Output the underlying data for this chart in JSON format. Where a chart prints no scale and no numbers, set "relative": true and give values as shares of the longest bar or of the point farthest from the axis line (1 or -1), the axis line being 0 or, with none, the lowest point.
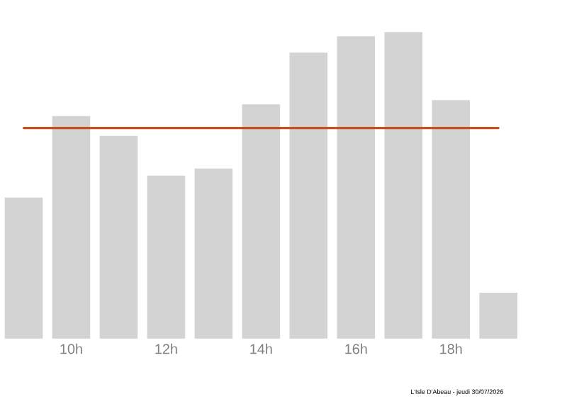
{
  "chart_data": {
    "type": "bar",
    "relative": true,
    "categories": [
      null,
      "10h",
      null,
      "12h",
      null,
      "14h",
      null,
      "16h",
      null,
      "18h",
      null
    ],
    "values": [
      0.46,
      0.726,
      0.661,
      0.532,
      0.555,
      0.764,
      0.933,
      0.986,
      1,
      0.778,
      0.15
    ],
    "color": "#d3d3d3",
    "ref_lines": [
      {
        "axis": "y",
        "value": 0.687,
        "color": "#c8501e"
      }
    ],
    "annotations": [
      "L'Isle D'Abeau - jeudi 30/07/2026"
    ]
  }
}
